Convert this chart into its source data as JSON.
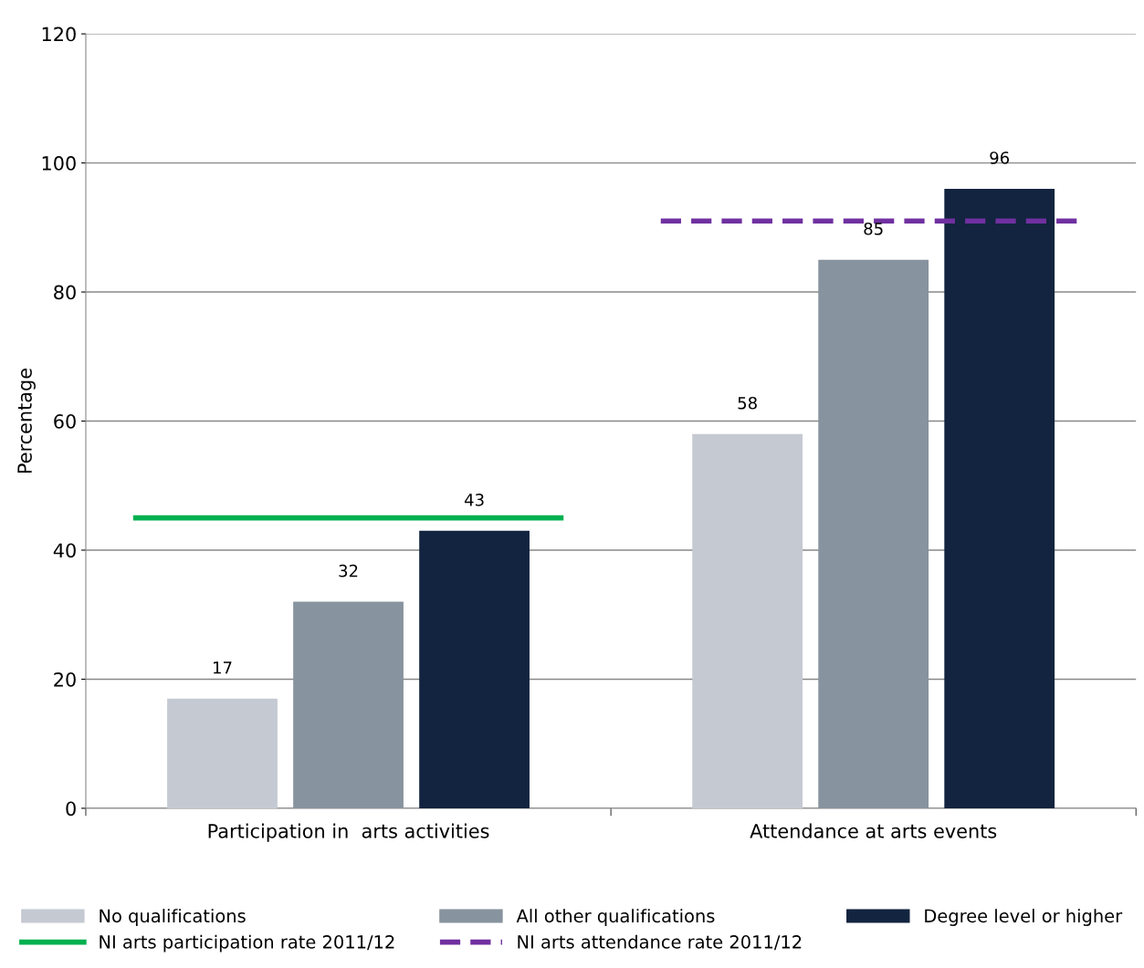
{
  "chart_data": {
    "type": "bar",
    "ylabel": "Percentage",
    "categories": [
      "Participation in  arts activities",
      "Attendance at arts events"
    ],
    "series": [
      {
        "name": "No qualifications",
        "color": "#c5c9d1",
        "values": [
          17,
          58
        ]
      },
      {
        "name": "All other qualifications",
        "color": "#87939e",
        "values": [
          32,
          85
        ]
      },
      {
        "name": "Degree level or higher",
        "color": "#12243f",
        "values": [
          43,
          96
        ]
      }
    ],
    "ref_lines": [
      {
        "axis": "y",
        "value": 45,
        "label": "NI arts participation rate 2011/12",
        "color": "#00b050",
        "line_style": "solid"
      },
      {
        "axis": "y",
        "value": 91,
        "label": "NI arts attendance rate 2011/12",
        "color": "#7030a0",
        "line_style": "dashed"
      }
    ],
    "ylim": [
      0,
      120
    ],
    "yticks": [
      0,
      20,
      40,
      60,
      80,
      100,
      120
    ],
    "grid": "y",
    "legend": "bottom",
    "data_labels": true
  }
}
